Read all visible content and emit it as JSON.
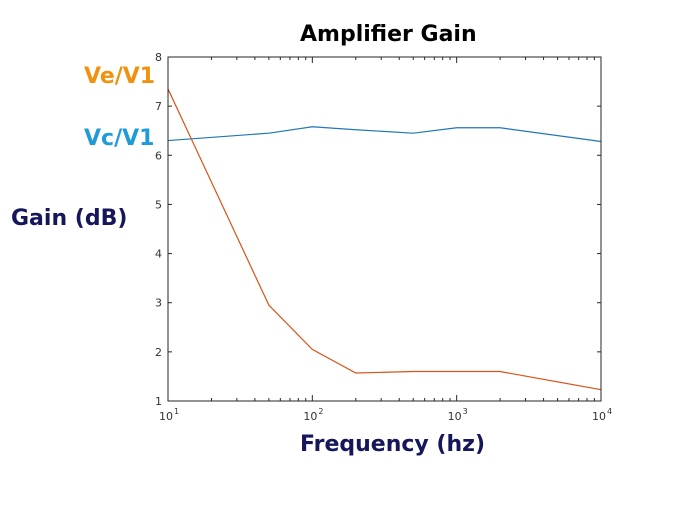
{
  "chart_data": {
    "type": "line",
    "title": "Amplifier Gain",
    "xlabel": "Frequency (hz)",
    "ylabel": "Gain (dB)",
    "xscale": "log",
    "xlim": [
      10,
      10000
    ],
    "ylim": [
      1,
      8
    ],
    "grid": false,
    "legend": "series names printed at left of plot",
    "x_ticks": [
      {
        "value": 10,
        "base": "10",
        "exp": "1"
      },
      {
        "value": 100,
        "base": "10",
        "exp": "2"
      },
      {
        "value": 1000,
        "base": "10",
        "exp": "3"
      },
      {
        "value": 10000,
        "base": "10",
        "exp": "4"
      }
    ],
    "y_ticks": [
      "1",
      "2",
      "3",
      "4",
      "5",
      "6",
      "7",
      "8"
    ],
    "series": [
      {
        "name": "Vc/V1",
        "color": "#1f77b4",
        "label_color": "#1f9bd8",
        "x": [
          10,
          50,
          100,
          200,
          500,
          1000,
          2000,
          10000
        ],
        "y": [
          6.3,
          6.45,
          6.58,
          6.52,
          6.45,
          6.56,
          6.56,
          6.28
        ]
      },
      {
        "name": "Ve/V1",
        "color": "#d95319",
        "label_color": "#f0920f",
        "x": [
          10,
          50,
          100,
          200,
          500,
          1000,
          2000,
          10000
        ],
        "y": [
          7.35,
          2.95,
          2.05,
          1.57,
          1.6,
          1.6,
          1.6,
          1.23
        ]
      }
    ]
  }
}
